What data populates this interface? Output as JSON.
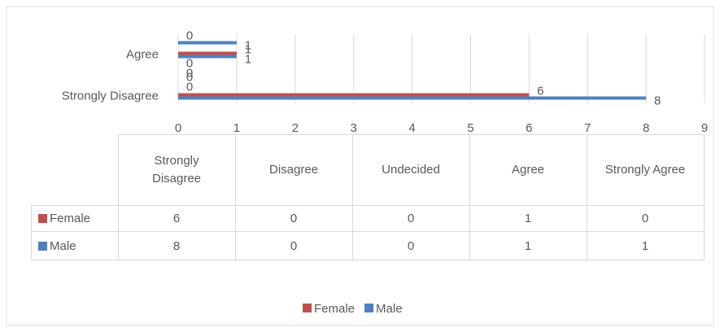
{
  "chart_data": {
    "type": "bar",
    "orientation": "horizontal",
    "categories": [
      "Strongly Disagree",
      "Disagree",
      "Undecided",
      "Agree",
      "Strongly Agree"
    ],
    "series": [
      {
        "name": "Female",
        "color": "#c0504d",
        "values": [
          6,
          0,
          0,
          1,
          0
        ]
      },
      {
        "name": "Male",
        "color": "#4f81bd",
        "values": [
          8,
          0,
          0,
          1,
          1
        ]
      }
    ],
    "xlim": [
      0,
      9
    ],
    "xticks": [
      0,
      1,
      2,
      3,
      4,
      5,
      6,
      7,
      8,
      9
    ],
    "grid": true,
    "data_labels": true,
    "data_table": true,
    "legend": "bottom"
  }
}
